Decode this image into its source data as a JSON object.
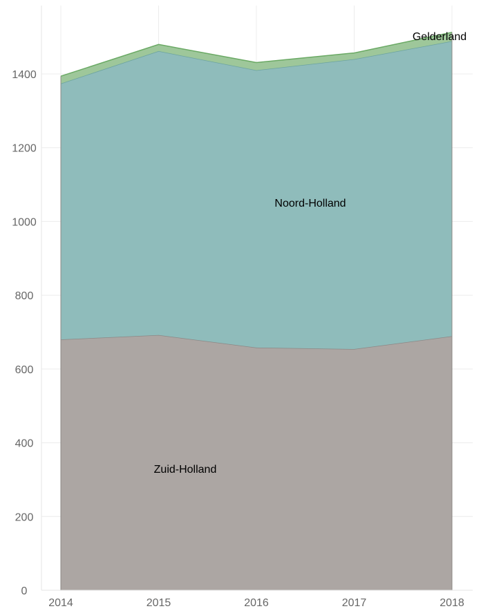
{
  "chart_data": {
    "type": "area",
    "stacked": true,
    "title": "",
    "xlabel": "",
    "ylabel": "",
    "x": [
      "2014",
      "2015",
      "2016",
      "2017",
      "2018"
    ],
    "ylim": [
      0,
      1580
    ],
    "yticks": [
      0,
      200,
      400,
      600,
      800,
      1000,
      1200,
      1400
    ],
    "grid": true,
    "legend": "none",
    "series": [
      {
        "name": "Zuid-Holland",
        "values": [
          680,
          692,
          658,
          654,
          689
        ],
        "color": "#aca6a3"
      },
      {
        "name": "Noord-Holland",
        "values": [
          694,
          770,
          752,
          786,
          800
        ],
        "color": "#8fbcbb"
      },
      {
        "name": "Gelderland",
        "values": [
          20,
          18,
          21,
          17,
          24
        ],
        "color": "#9ec79a"
      }
    ],
    "colors": {
      "zuid_holland_line": "#8c8886",
      "noord_holland_line": "#6ba3a0",
      "gelderland_line": "#6aa964"
    }
  }
}
